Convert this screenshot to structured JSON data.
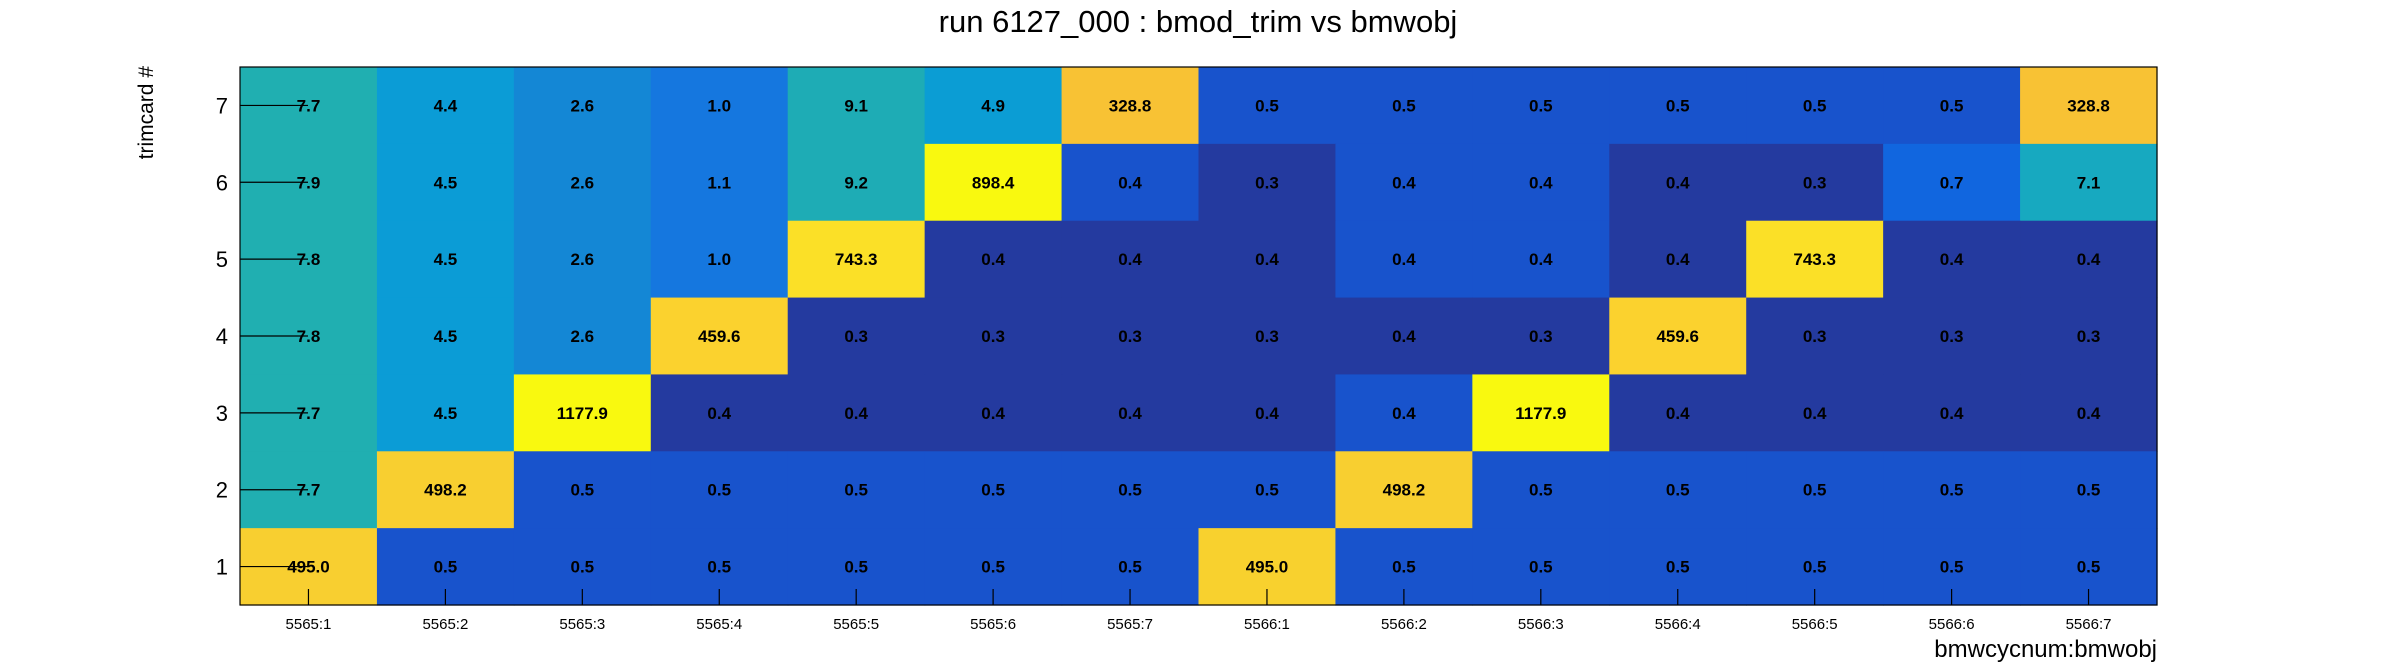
{
  "chart_data": {
    "type": "heatmap",
    "title": "run 6127_000 : bmod_trim vs bmwobj",
    "xlabel": "bmwcycnum:bmwobj",
    "ylabel": "trimcard #",
    "x_categories": [
      "5565:1",
      "5565:2",
      "5565:3",
      "5565:4",
      "5565:5",
      "5565:6",
      "5565:7",
      "5566:1",
      "5566:2",
      "5566:3",
      "5566:4",
      "5566:5",
      "5566:6",
      "5566:7"
    ],
    "y_categories": [
      "1",
      "2",
      "3",
      "4",
      "5",
      "6",
      "7"
    ],
    "rows": [
      {
        "y": "7",
        "values": [
          7.7,
          4.4,
          2.6,
          1.0,
          9.1,
          4.9,
          328.8,
          0.5,
          0.5,
          0.5,
          0.5,
          0.5,
          0.5,
          328.8
        ]
      },
      {
        "y": "6",
        "values": [
          7.9,
          4.5,
          2.6,
          1.1,
          9.2,
          898.4,
          0.4,
          0.3,
          0.4,
          0.4,
          0.4,
          0.3,
          0.7,
          7.1
        ]
      },
      {
        "y": "5",
        "values": [
          7.8,
          4.5,
          2.6,
          1.0,
          743.3,
          0.4,
          0.4,
          0.4,
          0.4,
          0.4,
          0.4,
          743.3,
          0.4,
          0.4
        ]
      },
      {
        "y": "4",
        "values": [
          7.8,
          4.5,
          2.6,
          459.6,
          0.3,
          0.3,
          0.3,
          0.3,
          0.4,
          0.3,
          459.6,
          0.3,
          0.3,
          0.3
        ]
      },
      {
        "y": "3",
        "values": [
          7.7,
          4.5,
          1177.9,
          0.4,
          0.4,
          0.4,
          0.4,
          0.4,
          0.4,
          1177.9,
          0.4,
          0.4,
          0.4,
          0.4
        ]
      },
      {
        "y": "2",
        "values": [
          7.7,
          498.2,
          0.5,
          0.5,
          0.5,
          0.5,
          0.5,
          0.5,
          498.2,
          0.5,
          0.5,
          0.5,
          0.5,
          0.5
        ]
      },
      {
        "y": "1",
        "values": [
          495.0,
          0.5,
          0.5,
          0.5,
          0.5,
          0.5,
          0.5,
          495.0,
          0.5,
          0.5,
          0.5,
          0.5,
          0.5,
          0.5
        ]
      }
    ],
    "value_format": "one decimal",
    "colors": {
      "cell_colors": [
        [
          "#20AFB1",
          "#0B9CD6",
          "#1487D5",
          "#1577DF",
          "#1EACB5",
          "#0B9DD4",
          "#F8C234",
          "#1853CC",
          "#1853CC",
          "#1853CC",
          "#1853CC",
          "#1853CC",
          "#1853CC",
          "#F8C234"
        ],
        [
          "#20AFB1",
          "#0B9CD6",
          "#1487D5",
          "#1577DF",
          "#1EACB5",
          "#F9F90F",
          "#1853CC",
          "#243A9F",
          "#1853CC",
          "#1853CC",
          "#243A9F",
          "#243A9F",
          "#1166DF",
          "#17A9C0"
        ],
        [
          "#20AFB1",
          "#0B9CD6",
          "#1487D5",
          "#1577DF",
          "#FBE027",
          "#243A9F",
          "#243A9F",
          "#243A9F",
          "#1853CC",
          "#1853CC",
          "#243A9F",
          "#FBE027",
          "#243A9F",
          "#243A9F"
        ],
        [
          "#20AFB1",
          "#0B9CD6",
          "#1487D5",
          "#FBD22E",
          "#243A9F",
          "#243A9F",
          "#243A9F",
          "#243A9F",
          "#243A9F",
          "#243A9F",
          "#FBD22E",
          "#243A9F",
          "#243A9F",
          "#243A9F"
        ],
        [
          "#20AFB1",
          "#0B9CD6",
          "#F9F90F",
          "#243A9F",
          "#243A9F",
          "#243A9F",
          "#243A9F",
          "#243A9F",
          "#1853CC",
          "#F9F90F",
          "#243A9F",
          "#243A9F",
          "#243A9F",
          "#243A9F"
        ],
        [
          "#20AFB1",
          "#F8CF30",
          "#1853CC",
          "#1853CC",
          "#1853CC",
          "#1853CC",
          "#1853CC",
          "#1853CC",
          "#F8CF30",
          "#1853CC",
          "#1853CC",
          "#1853CC",
          "#1853CC",
          "#1853CC"
        ],
        [
          "#F8CF30",
          "#1853CC",
          "#1853CC",
          "#1853CC",
          "#1853CC",
          "#1853CC",
          "#1853CC",
          "#F8D12E",
          "#1853CC",
          "#1853CC",
          "#1853CC",
          "#1853CC",
          "#1853CC",
          "#1853CC"
        ]
      ],
      "axis": "#000000",
      "text": "#000000"
    },
    "grid": false,
    "legend": "none"
  }
}
